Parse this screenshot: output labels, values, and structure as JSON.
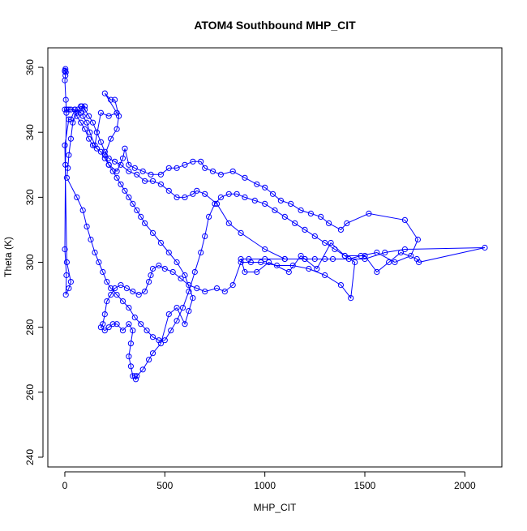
{
  "chart_data": {
    "type": "line",
    "title": "ATOM4 Southbound MHP_CIT",
    "xlabel": "MHP_CIT",
    "ylabel": "Theta (K)",
    "xlim": [
      -85,
      2185
    ],
    "ylim": [
      237,
      366
    ],
    "x_ticks": [
      0,
      500,
      1000,
      1500,
      2000
    ],
    "y_ticks": [
      240,
      260,
      280,
      300,
      320,
      340,
      360
    ],
    "grid": false,
    "line_color": "#0000ff",
    "marker": "open-circle",
    "series": [
      {
        "points": [
          [
            0,
            359
          ],
          [
            3,
            359.5
          ],
          [
            5,
            358.5
          ],
          [
            0,
            358.8
          ],
          [
            3,
            357.5
          ],
          [
            0,
            356
          ],
          [
            5,
            350
          ],
          [
            8,
            346
          ],
          [
            3,
            330
          ],
          [
            0,
            304
          ],
          [
            8,
            296
          ],
          [
            5,
            290
          ],
          [
            20,
            292
          ],
          [
            30,
            294
          ],
          [
            10,
            300
          ],
          [
            0,
            336
          ],
          [
            20,
            344
          ],
          [
            30,
            344
          ],
          [
            50,
            347
          ],
          [
            65,
            347
          ],
          [
            80,
            346
          ],
          [
            85,
            348
          ],
          [
            100,
            348
          ],
          [
            90,
            345
          ],
          [
            110,
            343
          ],
          [
            125,
            340
          ],
          [
            150,
            336
          ],
          [
            180,
            346
          ],
          [
            220,
            345
          ],
          [
            260,
            346
          ],
          [
            200,
            352
          ],
          [
            230,
            350
          ],
          [
            250,
            350
          ],
          [
            270,
            345
          ],
          [
            260,
            341
          ],
          [
            230,
            338
          ],
          [
            200,
            333
          ],
          [
            220,
            330
          ],
          [
            260,
            328
          ],
          [
            290,
            332
          ],
          [
            300,
            335
          ],
          [
            320,
            330
          ],
          [
            350,
            329
          ],
          [
            390,
            328
          ],
          [
            430,
            327
          ],
          [
            480,
            327
          ],
          [
            520,
            329
          ],
          [
            560,
            329
          ],
          [
            600,
            330
          ],
          [
            640,
            331
          ],
          [
            680,
            331
          ],
          [
            700,
            329
          ],
          [
            740,
            328
          ],
          [
            780,
            327
          ],
          [
            840,
            328
          ],
          [
            900,
            326
          ],
          [
            960,
            324
          ],
          [
            1000,
            323
          ],
          [
            1040,
            321
          ],
          [
            1080,
            319
          ],
          [
            1130,
            318
          ],
          [
            1180,
            316
          ],
          [
            1230,
            315
          ],
          [
            1280,
            314
          ],
          [
            1320,
            312
          ],
          [
            1380,
            310
          ],
          [
            1410,
            312
          ],
          [
            1520,
            315
          ],
          [
            1700,
            313
          ],
          [
            1765,
            307
          ],
          [
            1730,
            302
          ],
          [
            1650,
            300
          ],
          [
            1560,
            303
          ],
          [
            1480,
            302
          ],
          [
            1420,
            301
          ],
          [
            1340,
            301
          ],
          [
            1250,
            301
          ],
          [
            1200,
            301
          ],
          [
            1100,
            301
          ],
          [
            1000,
            301
          ],
          [
            920,
            301
          ],
          [
            880,
            301
          ],
          [
            900,
            297
          ],
          [
            960,
            297
          ],
          [
            1020,
            300
          ],
          [
            1120,
            297
          ],
          [
            1180,
            302
          ],
          [
            1260,
            298
          ],
          [
            1330,
            306
          ],
          [
            1400,
            302
          ],
          [
            1500,
            302
          ],
          [
            1560,
            297
          ],
          [
            1620,
            300
          ],
          [
            1680,
            303
          ],
          [
            1760,
            301
          ],
          [
            1770,
            300
          ],
          [
            2100,
            304.5
          ],
          [
            1700,
            304
          ],
          [
            1600,
            303
          ],
          [
            1500,
            301
          ],
          [
            1300,
            301
          ],
          [
            1200,
            301
          ],
          [
            1100,
            301
          ],
          [
            1000,
            304
          ],
          [
            880,
            309
          ],
          [
            820,
            312
          ],
          [
            760,
            318
          ],
          [
            700,
            321
          ],
          [
            660,
            322
          ],
          [
            640,
            321
          ],
          [
            600,
            320
          ],
          [
            560,
            320
          ],
          [
            520,
            322
          ],
          [
            480,
            324
          ],
          [
            440,
            325
          ],
          [
            400,
            325
          ],
          [
            360,
            327
          ],
          [
            320,
            328
          ],
          [
            280,
            330
          ],
          [
            250,
            331
          ],
          [
            220,
            332
          ],
          [
            200,
            334
          ],
          [
            180,
            337
          ],
          [
            160,
            340
          ],
          [
            140,
            343
          ],
          [
            120,
            345
          ],
          [
            100,
            347
          ],
          [
            80,
            348
          ],
          [
            60,
            346
          ],
          [
            40,
            343
          ],
          [
            30,
            338
          ],
          [
            20,
            333
          ],
          [
            15,
            329
          ],
          [
            10,
            326
          ],
          [
            60,
            320
          ],
          [
            90,
            316
          ],
          [
            110,
            311
          ],
          [
            130,
            307
          ],
          [
            150,
            303
          ],
          [
            170,
            300
          ],
          [
            190,
            297
          ],
          [
            210,
            294
          ],
          [
            230,
            292
          ],
          [
            260,
            290
          ],
          [
            290,
            288
          ],
          [
            320,
            286
          ],
          [
            350,
            283
          ],
          [
            380,
            281
          ],
          [
            410,
            279
          ],
          [
            440,
            277
          ],
          [
            470,
            276
          ],
          [
            500,
            276
          ],
          [
            530,
            279
          ],
          [
            560,
            282
          ],
          [
            590,
            286
          ],
          [
            620,
            291
          ],
          [
            650,
            297
          ],
          [
            680,
            303
          ],
          [
            700,
            308
          ],
          [
            720,
            314
          ],
          [
            750,
            318
          ],
          [
            780,
            320
          ],
          [
            820,
            321
          ],
          [
            860,
            321
          ],
          [
            900,
            320
          ],
          [
            950,
            319
          ],
          [
            1000,
            318
          ],
          [
            1050,
            316
          ],
          [
            1100,
            314
          ],
          [
            1150,
            312
          ],
          [
            1200,
            310
          ],
          [
            1250,
            308
          ],
          [
            1300,
            306
          ],
          [
            1350,
            304
          ],
          [
            1400,
            302
          ],
          [
            1450,
            300
          ],
          [
            1430,
            289
          ],
          [
            1380,
            293
          ],
          [
            1300,
            296
          ],
          [
            1220,
            298
          ],
          [
            1140,
            299
          ],
          [
            1060,
            299
          ],
          [
            980,
            300
          ],
          [
            930,
            300
          ],
          [
            880,
            300
          ],
          [
            840,
            293
          ],
          [
            800,
            291
          ],
          [
            760,
            292
          ],
          [
            700,
            291
          ],
          [
            660,
            292
          ],
          [
            620,
            293
          ],
          [
            580,
            295
          ],
          [
            540,
            297
          ],
          [
            500,
            298
          ],
          [
            470,
            299
          ],
          [
            440,
            298
          ],
          [
            430,
            296
          ],
          [
            420,
            294
          ],
          [
            400,
            291
          ],
          [
            370,
            290
          ],
          [
            340,
            291
          ],
          [
            310,
            292
          ],
          [
            280,
            293
          ],
          [
            250,
            292
          ],
          [
            230,
            290
          ],
          [
            210,
            288
          ],
          [
            200,
            284
          ],
          [
            190,
            281
          ],
          [
            180,
            280
          ],
          [
            200,
            279
          ],
          [
            220,
            280
          ],
          [
            240,
            281
          ],
          [
            260,
            281
          ],
          [
            290,
            279
          ],
          [
            320,
            281
          ],
          [
            340,
            279
          ],
          [
            330,
            275
          ],
          [
            320,
            271
          ],
          [
            330,
            268
          ],
          [
            340,
            265
          ],
          [
            350,
            265
          ],
          [
            355,
            264
          ],
          [
            360,
            265
          ],
          [
            390,
            267
          ],
          [
            420,
            270
          ],
          [
            440,
            272
          ],
          [
            480,
            275
          ],
          [
            520,
            284
          ],
          [
            560,
            286
          ],
          [
            600,
            281
          ],
          [
            620,
            285
          ],
          [
            640,
            289
          ],
          [
            600,
            296
          ],
          [
            560,
            300
          ],
          [
            520,
            303
          ],
          [
            480,
            306
          ],
          [
            440,
            309
          ],
          [
            400,
            312
          ],
          [
            380,
            314
          ],
          [
            360,
            316
          ],
          [
            340,
            318
          ],
          [
            320,
            320
          ],
          [
            300,
            322
          ],
          [
            280,
            324
          ],
          [
            260,
            326
          ],
          [
            240,
            328
          ],
          [
            220,
            330
          ],
          [
            200,
            332
          ],
          [
            180,
            334
          ],
          [
            160,
            335
          ],
          [
            140,
            336
          ],
          [
            120,
            338
          ],
          [
            100,
            341
          ],
          [
            80,
            343
          ],
          [
            60,
            345
          ],
          [
            50,
            347
          ],
          [
            30,
            347
          ],
          [
            20,
            347
          ],
          [
            10,
            347
          ],
          [
            0,
            347
          ]
        ]
      }
    ]
  }
}
